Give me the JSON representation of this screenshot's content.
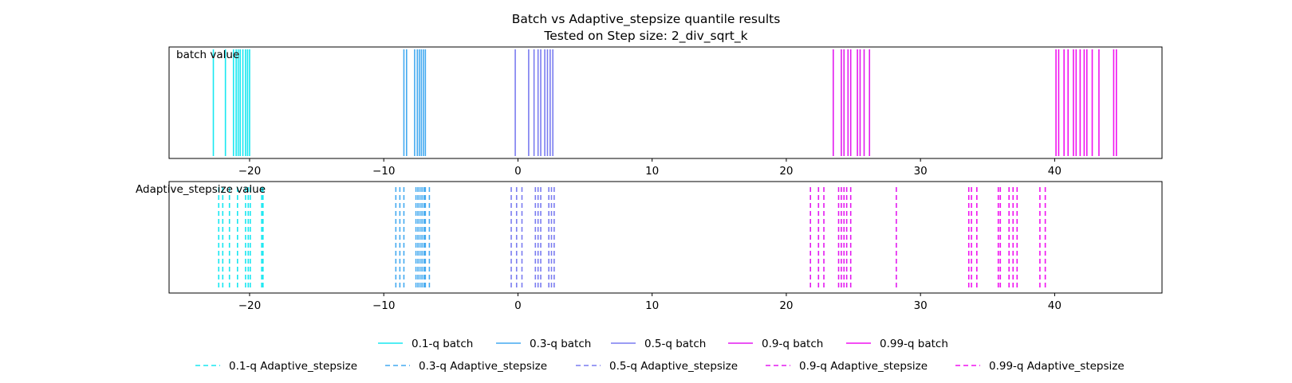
{
  "title": "Batch vs Adaptive_stepsize quantile results",
  "subtitle": "Tested on Step size: 2_div_sqrt_k",
  "chart_data": {
    "type": "eventplot",
    "xlim": [
      -26,
      48
    ],
    "xticks": [
      -20,
      -10,
      0,
      10,
      20,
      30,
      40
    ],
    "xtick_labels": [
      "−20",
      "−10",
      "0",
      "10",
      "20",
      "30",
      "40"
    ],
    "grid": false,
    "legend_position": "bottom-center",
    "panels": [
      {
        "label": "batch value",
        "line_style": "solid",
        "series": [
          {
            "name": "0.1-q batch",
            "color": "#18e7f1",
            "values": [
              -22.7,
              -21.8,
              -21.2,
              -21.0,
              -20.85,
              -20.7,
              -20.5,
              -20.3,
              -20.15,
              -20.0
            ]
          },
          {
            "name": "0.3-q batch",
            "color": "#44aaf0",
            "values": [
              -8.5,
              -8.3,
              -7.7,
              -7.5,
              -7.35,
              -7.2,
              -7.05,
              -6.9
            ]
          },
          {
            "name": "0.5-q batch",
            "color": "#7a7cf0",
            "values": [
              -0.2,
              0.8,
              1.2,
              1.5,
              1.7,
              2.0,
              2.2,
              2.4,
              2.6
            ]
          },
          {
            "name": "0.9-q batch",
            "color": "#e31af0",
            "values": [
              23.5,
              24.1,
              24.3,
              24.6,
              24.8,
              25.3,
              25.5,
              25.8,
              26.2
            ]
          },
          {
            "name": "0.99-q batch",
            "color": "#f012f0",
            "values": [
              40.1,
              40.3,
              40.7,
              41.0,
              41.4,
              41.6,
              41.9,
              42.2,
              42.4,
              42.8,
              43.3,
              44.4,
              44.6
            ]
          }
        ]
      },
      {
        "label": "Adaptive_stepsize value",
        "line_style": "dashed",
        "series": [
          {
            "name": "0.1-q Adaptive_stepsize",
            "color": "#18e7f1",
            "values": [
              -22.3,
              -22.0,
              -21.5,
              -20.9,
              -20.3,
              -20.1,
              -19.95,
              -19.1,
              -19.0
            ]
          },
          {
            "name": "0.3-q Adaptive_stepsize",
            "color": "#44aaf0",
            "values": [
              -9.1,
              -8.8,
              -8.5,
              -7.6,
              -7.45,
              -7.3,
              -7.15,
              -7.0,
              -6.9,
              -6.6
            ]
          },
          {
            "name": "0.5-q Adaptive_stepsize",
            "color": "#7a7cf0",
            "values": [
              -0.5,
              -0.1,
              0.3,
              1.3,
              1.5,
              1.7,
              2.3,
              2.5,
              2.7
            ]
          },
          {
            "name": "0.9-q Adaptive_stepsize",
            "color": "#e31af0",
            "values": [
              21.8,
              22.4,
              22.8,
              23.9,
              24.1,
              24.3,
              24.5,
              24.8,
              28.2
            ]
          },
          {
            "name": "0.99-q Adaptive_stepsize",
            "color": "#f012f0",
            "values": [
              33.6,
              33.8,
              34.2,
              35.8,
              35.95,
              36.6,
              36.9,
              37.2,
              38.9,
              39.3
            ]
          }
        ]
      }
    ]
  }
}
